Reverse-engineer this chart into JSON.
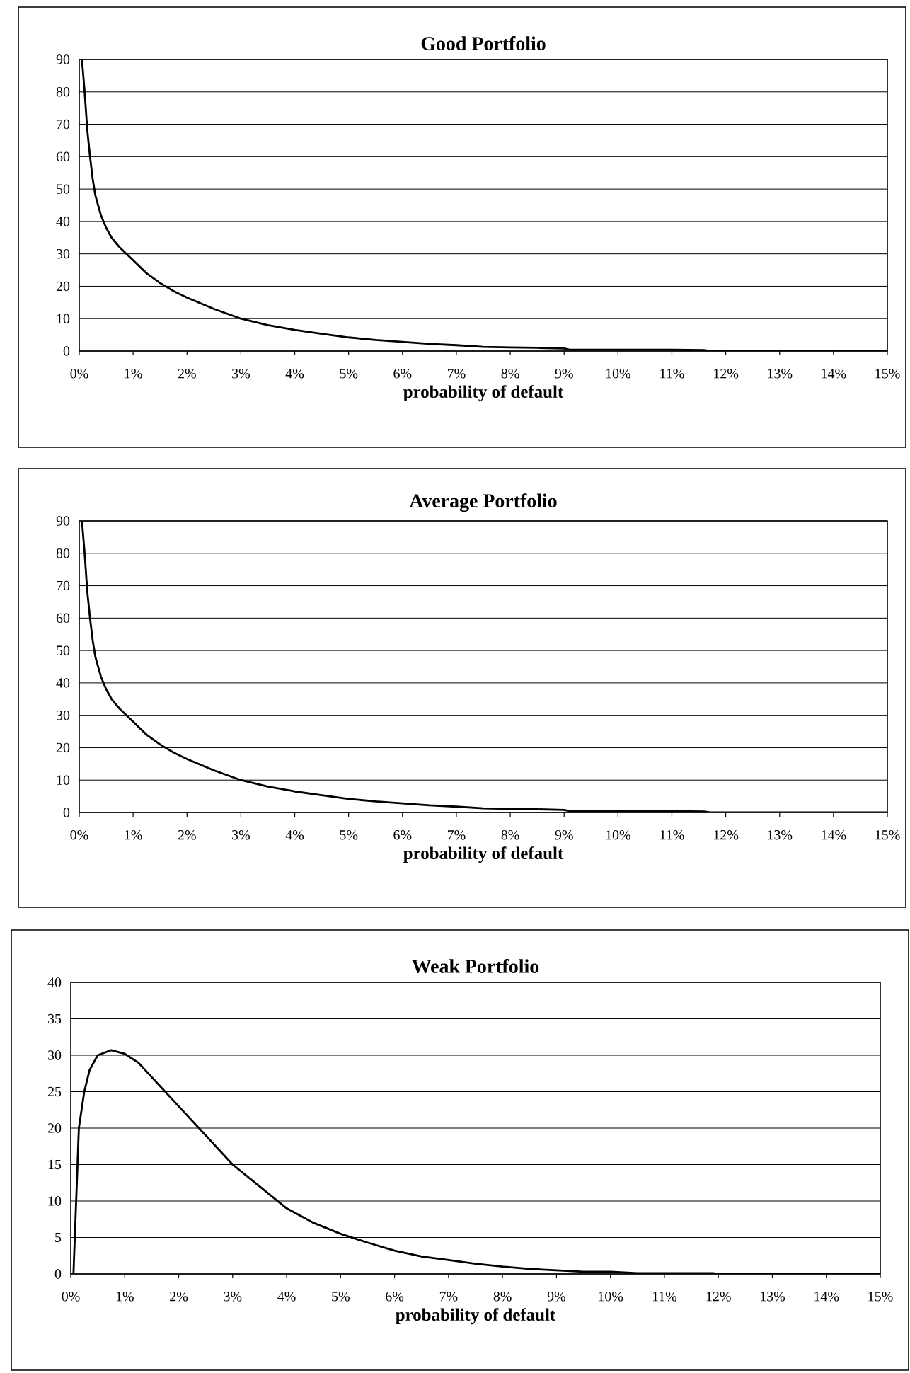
{
  "chart_data": [
    {
      "type": "line",
      "title": "Good Portfolio",
      "xlabel": "probability of default",
      "color": "#000000",
      "marker": "none",
      "line_style": "solid",
      "grid": "y",
      "x": [
        0.05,
        0.1,
        0.15,
        0.2,
        0.25,
        0.3,
        0.4,
        0.5,
        0.6,
        0.75,
        1,
        1.25,
        1.5,
        1.75,
        2,
        2.5,
        3,
        3.5,
        4,
        4.5,
        5,
        5.5,
        6,
        6.5,
        7,
        7.5,
        8,
        8.5,
        9,
        9.1,
        10,
        11,
        11.6,
        11.7,
        13,
        15
      ],
      "values": [
        90,
        80,
        68,
        60,
        53,
        48,
        42,
        38,
        35,
        32,
        28,
        24,
        21,
        18.5,
        16.5,
        13,
        10,
        8,
        6.5,
        5.3,
        4.2,
        3.4,
        2.8,
        2.2,
        1.8,
        1.3,
        1.1,
        1,
        0.8,
        0.4,
        0.4,
        0.4,
        0.3,
        0,
        0,
        0
      ],
      "xlim": [
        0,
        15
      ],
      "ylim": [
        0,
        90
      ],
      "xticks": [
        {
          "value": 0,
          "label": "0%"
        },
        {
          "value": 1,
          "label": "1%"
        },
        {
          "value": 2,
          "label": "2%"
        },
        {
          "value": 3,
          "label": "3%"
        },
        {
          "value": 4,
          "label": "4%"
        },
        {
          "value": 5,
          "label": "5%"
        },
        {
          "value": 6,
          "label": "6%"
        },
        {
          "value": 7,
          "label": "7%"
        },
        {
          "value": 8,
          "label": "8%"
        },
        {
          "value": 9,
          "label": "9%"
        },
        {
          "value": 10,
          "label": "10%"
        },
        {
          "value": 11,
          "label": "11%"
        },
        {
          "value": 12,
          "label": "12%"
        },
        {
          "value": 13,
          "label": "13%"
        },
        {
          "value": 14,
          "label": "14%"
        },
        {
          "value": 15,
          "label": "15%"
        }
      ],
      "yticks": [
        0,
        10,
        20,
        30,
        40,
        50,
        60,
        70,
        80,
        90
      ]
    },
    {
      "type": "line",
      "title": "Average Portfolio",
      "xlabel": "probability of default",
      "color": "#000000",
      "marker": "none",
      "line_style": "solid",
      "grid": "y",
      "x": [
        0.05,
        0.1,
        0.15,
        0.2,
        0.25,
        0.3,
        0.4,
        0.5,
        0.6,
        0.75,
        1,
        1.25,
        1.5,
        1.75,
        2,
        2.5,
        3,
        3.5,
        4,
        4.5,
        5,
        5.5,
        6,
        6.5,
        7,
        7.5,
        8,
        8.5,
        9,
        9.1,
        10,
        11,
        11.6,
        11.7,
        13,
        15
      ],
      "values": [
        90,
        80,
        68,
        60,
        53,
        48,
        42,
        38,
        35,
        32,
        28,
        24,
        21,
        18.5,
        16.5,
        13,
        10,
        8,
        6.5,
        5.3,
        4.2,
        3.4,
        2.8,
        2.2,
        1.8,
        1.3,
        1.1,
        1,
        0.8,
        0.4,
        0.4,
        0.4,
        0.3,
        0,
        0,
        0
      ],
      "xlim": [
        0,
        15
      ],
      "ylim": [
        0,
        90
      ],
      "xticks": [
        {
          "value": 0,
          "label": "0%"
        },
        {
          "value": 1,
          "label": "1%"
        },
        {
          "value": 2,
          "label": "2%"
        },
        {
          "value": 3,
          "label": "3%"
        },
        {
          "value": 4,
          "label": "4%"
        },
        {
          "value": 5,
          "label": "5%"
        },
        {
          "value": 6,
          "label": "6%"
        },
        {
          "value": 7,
          "label": "7%"
        },
        {
          "value": 8,
          "label": "8%"
        },
        {
          "value": 9,
          "label": "9%"
        },
        {
          "value": 10,
          "label": "10%"
        },
        {
          "value": 11,
          "label": "11%"
        },
        {
          "value": 12,
          "label": "12%"
        },
        {
          "value": 13,
          "label": "13%"
        },
        {
          "value": 14,
          "label": "14%"
        },
        {
          "value": 15,
          "label": "15%"
        }
      ],
      "yticks": [
        0,
        10,
        20,
        30,
        40,
        50,
        60,
        70,
        80,
        90
      ]
    },
    {
      "type": "line",
      "title": "Weak Portfolio",
      "xlabel": "probability of default",
      "color": "#000000",
      "marker": "none",
      "line_style": "solid",
      "grid": "y",
      "x": [
        0.05,
        0.1,
        0.15,
        0.25,
        0.35,
        0.5,
        0.75,
        1,
        1.25,
        1.5,
        2,
        2.5,
        3,
        3.5,
        4,
        4.5,
        5,
        5.5,
        6,
        6.5,
        7,
        7.5,
        8,
        8.5,
        9,
        9.5,
        10,
        10.5,
        11,
        11.9,
        12,
        15
      ],
      "values": [
        0,
        10,
        20,
        25,
        28,
        30,
        30.7,
        30.2,
        29,
        27,
        23,
        19,
        15,
        12,
        9,
        7,
        5.5,
        4.3,
        3.2,
        2.4,
        1.9,
        1.4,
        1,
        0.7,
        0.5,
        0.3,
        0.3,
        0.1,
        0.1,
        0.1,
        0,
        0
      ],
      "xlim": [
        0,
        15
      ],
      "ylim": [
        0,
        40
      ],
      "xticks": [
        {
          "value": 0,
          "label": "0%"
        },
        {
          "value": 1,
          "label": "1%"
        },
        {
          "value": 2,
          "label": "2%"
        },
        {
          "value": 3,
          "label": "3%"
        },
        {
          "value": 4,
          "label": "4%"
        },
        {
          "value": 5,
          "label": "5%"
        },
        {
          "value": 6,
          "label": "6%"
        },
        {
          "value": 7,
          "label": "7%"
        },
        {
          "value": 8,
          "label": "8%"
        },
        {
          "value": 9,
          "label": "9%"
        },
        {
          "value": 10,
          "label": "10%"
        },
        {
          "value": 11,
          "label": "11%"
        },
        {
          "value": 12,
          "label": "12%"
        },
        {
          "value": 13,
          "label": "13%"
        },
        {
          "value": 14,
          "label": "14%"
        },
        {
          "value": 15,
          "label": "15%"
        }
      ],
      "yticks": [
        0,
        5,
        10,
        15,
        20,
        25,
        30,
        35,
        40
      ]
    }
  ]
}
